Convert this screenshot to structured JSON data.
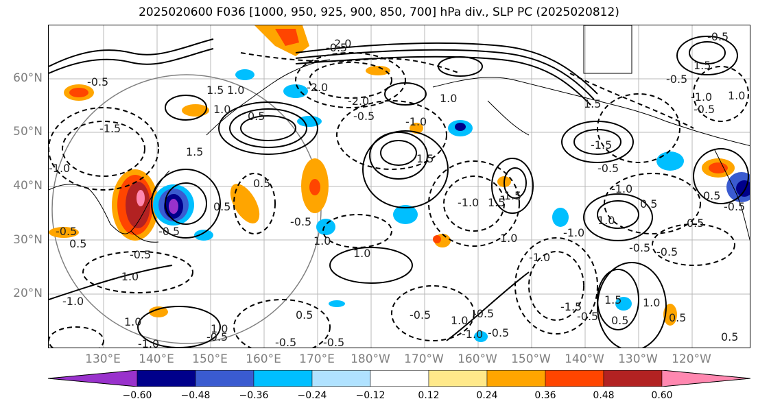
{
  "title": "2025020600 F036 [1000, 950, 925, 900, 850, 700] hPa div., SLP PC (2025020812)",
  "lat_labels": [
    "60°N",
    "50°N",
    "40°N",
    "30°N",
    "20°N"
  ],
  "lon_labels": [
    "130°E",
    "140°E",
    "150°E",
    "160°E",
    "170°E",
    "180°W",
    "170°W",
    "160°W",
    "150°W",
    "140°W",
    "130°W",
    "120°W"
  ],
  "colorbar": {
    "ticks": [
      "−0.60",
      "−0.48",
      "−0.36",
      "−0.24",
      "−0.12",
      "0.12",
      "0.24",
      "0.36",
      "0.48",
      "0.60"
    ],
    "colors": [
      "#9932cc",
      "#00008b",
      "#3a5bd0",
      "#00bfff",
      "#b0e2ff",
      "#ffffff",
      "#ffe98a",
      "#ffa500",
      "#ff4500",
      "#b22222",
      "#ff88b0"
    ]
  },
  "contour_labels": [
    "1.0",
    "-0.5",
    "-1.5",
    "-2.0",
    "2.0",
    "0.5",
    "-1.0",
    "1.5",
    "-0.5",
    "-2.0",
    "1.5",
    "-1.0",
    "1.0",
    "-1.5",
    "0.5",
    "-0.5",
    "1.0",
    "1.5",
    "-0.5",
    "-1.0",
    "-0.5",
    "1.0",
    "-0.5",
    "0.5",
    "-0.5",
    "-0.5",
    "-1.0",
    "-0.5",
    "1.0",
    "-0.5",
    "0.5",
    "-1.5",
    "1.0",
    "-1.0",
    "-0.5",
    "1.0",
    "-1.0",
    "0.5",
    "-1.0",
    "-0.5",
    "1.5",
    "-1.0",
    "-0.5",
    "1.0",
    "-0.5",
    "0.5",
    "-0.5",
    "-1.0",
    "0.5",
    "-0.5",
    "0.5",
    "1.5",
    "1.0",
    "1.0",
    "-1.5",
    "1.5",
    "-0.5",
    "-1.0",
    "-0.5",
    "0.5",
    "1.5",
    "1.0",
    "-0.5",
    "1.0",
    "-0.5",
    "-1.0",
    "0.5",
    "-0.5",
    "0.5"
  ]
}
